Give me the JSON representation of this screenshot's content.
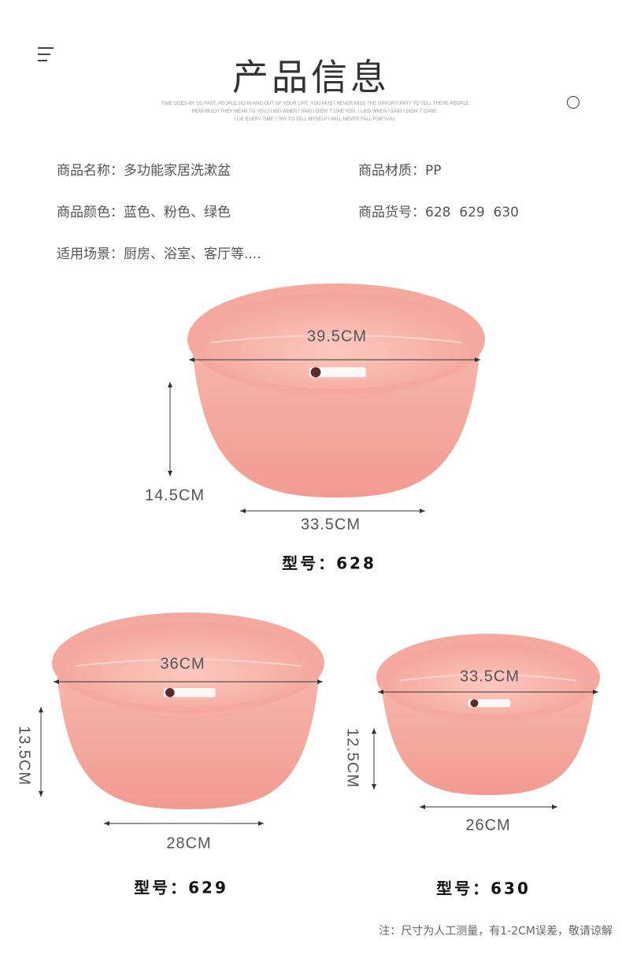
{
  "header": {
    "title": "产品信息",
    "motto": [
      "TIME GOES BY SO FAST, PEOPLE GO IN AND OUT OF YOUR LIFE. YOU MUST NEVER MISS THE OPPORTUNITY TO TELL THESE PEOPLE",
      "HOW MUCH THEY MEAN TO YOU,I LIED WHEN I SAID I DIDN' T LIKE YOU. I LIED WHEN I SAID I DIDN' T CARE.",
      "I LIE EVERY TIME I TRY TO TELL MYSELF I WILL NEVER FALL FOR YOU."
    ],
    "menu_icon": "menu-icon",
    "circle_icon": "circle-icon"
  },
  "info": {
    "name": "商品名称：多功能家居洗漱盆",
    "material": "商品材质：PP",
    "color": "商品颜色：蓝色、粉色、绿色",
    "sku": "商品货号：628  629  630",
    "usage": "适用场景：厨房、浴室、客厅等...."
  },
  "products": [
    {
      "model": "型号：628",
      "top_diameter": "39.5CM",
      "height": "14.5CM",
      "bottom_diameter": "33.5CM"
    },
    {
      "model": "型号：629",
      "top_diameter": "36CM",
      "height": "13.5CM",
      "bottom_diameter": "28CM"
    },
    {
      "model": "型号：630",
      "top_diameter": "33.5CM",
      "height": "12.5CM",
      "bottom_diameter": "26CM"
    }
  ],
  "product_color": "#f5a99e",
  "note": "注：尺寸为人工测量，有1-2CM误差，敬请谅解"
}
